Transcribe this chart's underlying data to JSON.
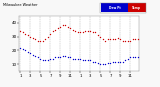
{
  "background_color": "#f8f8f8",
  "plot_bg": "#ffffff",
  "grid_color": "#aaaaaa",
  "temp_color": "#cc0000",
  "dew_color": "#0000cc",
  "temp_x": [
    0,
    1,
    2,
    3,
    4,
    5,
    6,
    7,
    8,
    9,
    10,
    11,
    12,
    13,
    14,
    15,
    16,
    17,
    18,
    19,
    20,
    21,
    22,
    23,
    24,
    25,
    26,
    27,
    28,
    29,
    30,
    31,
    32,
    33,
    34,
    35,
    36,
    37,
    38,
    39,
    40,
    41,
    42,
    43,
    44,
    45,
    46,
    47
  ],
  "temp_y": [
    34,
    33,
    32,
    31,
    30,
    29,
    28,
    27,
    27,
    27,
    28,
    30,
    32,
    34,
    35,
    36,
    37,
    38,
    38,
    37,
    36,
    35,
    34,
    33,
    33,
    33,
    34,
    34,
    34,
    33,
    33,
    31,
    30,
    28,
    27,
    28,
    28,
    28,
    28,
    29,
    28,
    27,
    27,
    27,
    27,
    28,
    28,
    28
  ],
  "dew_y": [
    22,
    21,
    20,
    19,
    18,
    17,
    16,
    15,
    14,
    13,
    13,
    13,
    14,
    14,
    15,
    15,
    15,
    16,
    16,
    15,
    15,
    14,
    14,
    14,
    14,
    13,
    13,
    13,
    13,
    12,
    12,
    11,
    10,
    10,
    10,
    11,
    11,
    12,
    12,
    12,
    12,
    12,
    13,
    14,
    15,
    15,
    15,
    15
  ],
  "ylim": [
    5,
    45
  ],
  "yticks": [
    10,
    20,
    30,
    40
  ],
  "ytick_labels": [
    "10",
    "20",
    "30",
    "40"
  ],
  "xtick_positions": [
    0,
    4,
    8,
    12,
    16,
    20,
    24,
    28,
    32,
    36,
    40,
    44
  ],
  "xtick_labels": [
    "1",
    "3",
    "5",
    "7",
    "9",
    "11",
    "1",
    "3",
    "5",
    "7",
    "9",
    "11"
  ],
  "grid_x": [
    0,
    4,
    8,
    12,
    16,
    20,
    24,
    28,
    32,
    36,
    40,
    44
  ],
  "legend_blue_label": "Dew Pt",
  "legend_red_label": "Temp",
  "title_text": "Milwaukee Weather"
}
